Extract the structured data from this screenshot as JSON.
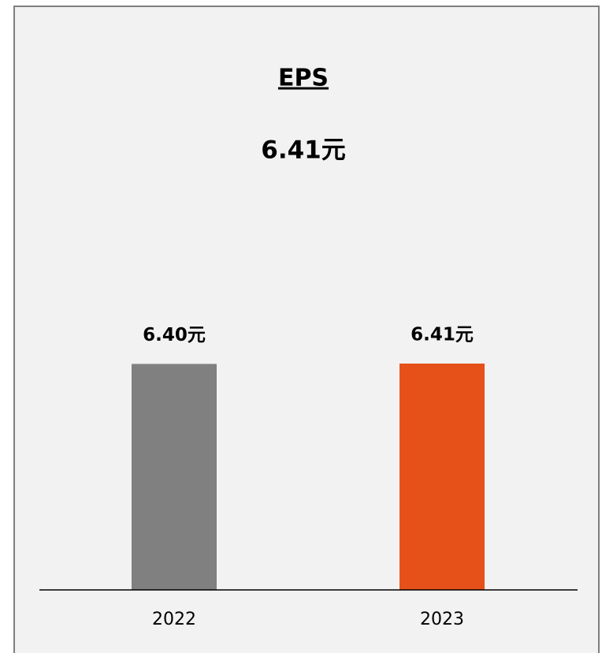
{
  "chart_data": {
    "type": "bar",
    "title": "EPS",
    "subtitle": "6.41元",
    "categories": [
      "2022",
      "2023"
    ],
    "values": [
      6.4,
      6.41
    ],
    "value_labels": [
      "6.40元",
      "6.41元"
    ],
    "colors": [
      "#808080",
      "#e6511a"
    ]
  }
}
